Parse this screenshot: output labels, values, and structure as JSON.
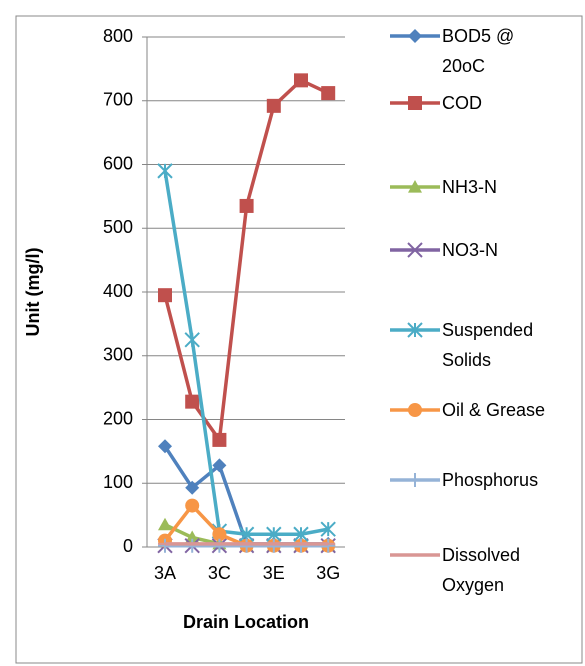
{
  "chart_data": {
    "type": "line",
    "xlabel": "Drain Location",
    "ylabel": "Unit (mg/l)",
    "categories": [
      "3A",
      null,
      "3C",
      null,
      "3E",
      null,
      "3G"
    ],
    "ylim": [
      0,
      800
    ],
    "yticks": [
      0,
      100,
      200,
      300,
      400,
      500,
      600,
      700,
      800
    ],
    "grid": true,
    "legend": "right",
    "series": [
      {
        "name": "BOD5  @ 20oC",
        "color": "#4f81bd",
        "marker": "diamond",
        "values": [
          158,
          93,
          128,
          5,
          5,
          5,
          5
        ]
      },
      {
        "name": "COD",
        "color": "#c0504d",
        "marker": "square",
        "values": [
          395,
          228,
          168,
          535,
          692,
          732,
          712
        ]
      },
      {
        "name": "NH3-N",
        "color": "#9bbb59",
        "marker": "triangle",
        "values": [
          35,
          15,
          5,
          2,
          2,
          2,
          2
        ]
      },
      {
        "name": "NO3-N",
        "color": "#8064a2",
        "marker": "x",
        "values": [
          2,
          2,
          2,
          2,
          2,
          2,
          2
        ]
      },
      {
        "name": "Suspended Solids",
        "color": "#4bacc6",
        "marker": "star",
        "values": [
          590,
          325,
          25,
          20,
          20,
          20,
          28
        ]
      },
      {
        "name": "Oil & Grease",
        "color": "#f79646",
        "marker": "circle",
        "values": [
          10,
          65,
          20,
          2,
          2,
          2,
          2
        ]
      },
      {
        "name": "Phosphorus",
        "color": "#95b3d7",
        "marker": "plus",
        "values": [
          2,
          2,
          2,
          2,
          2,
          2,
          2
        ]
      },
      {
        "name": "Dissolved Oxygen",
        "color": "#d99694",
        "marker": "dash",
        "values": [
          5,
          5,
          5,
          5,
          5,
          5,
          5
        ]
      }
    ]
  }
}
